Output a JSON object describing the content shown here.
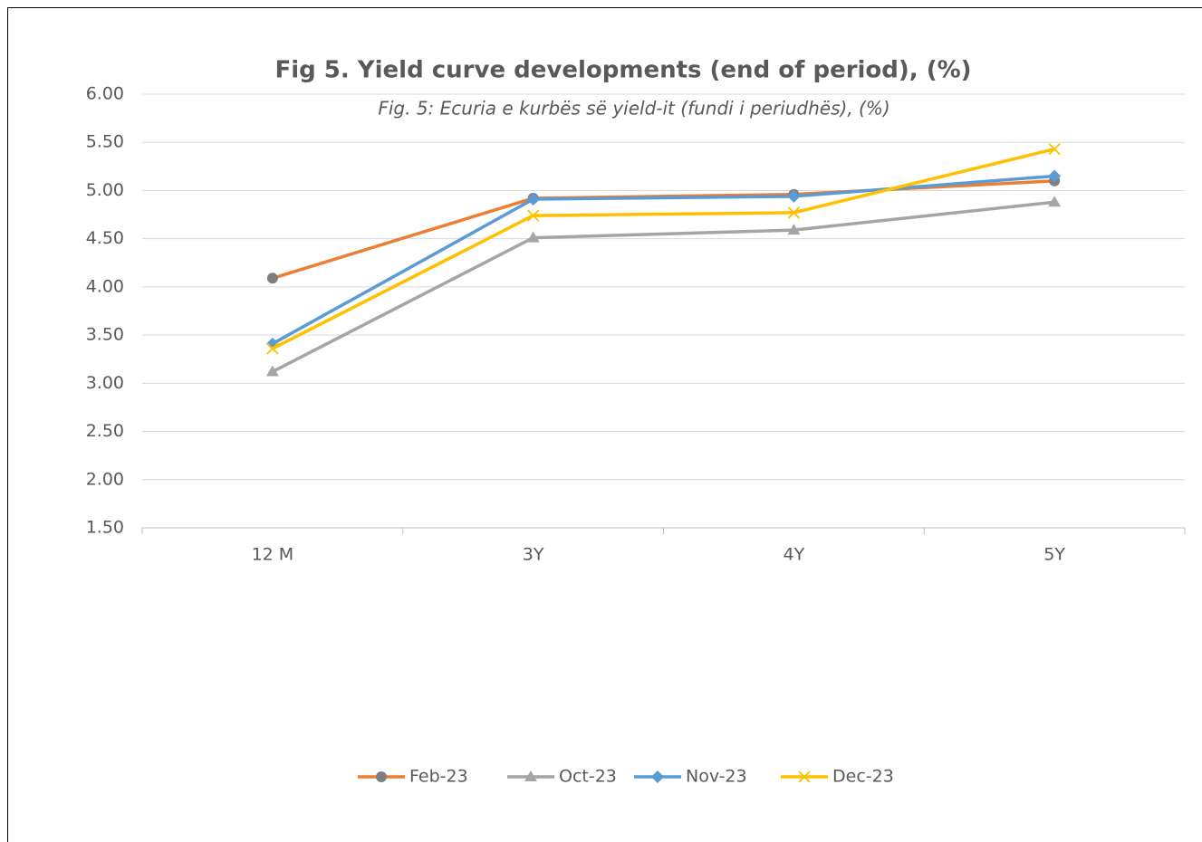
{
  "chart_data": {
    "type": "line",
    "title": "Fig 5. Yield curve developments (end of period), (%)",
    "subtitle": "Fig. 5: Ecuria e kurbës së yield-it (fundi i periudhës), (%)",
    "categories": [
      "12 M",
      "3Y",
      "4Y",
      "5Y"
    ],
    "series": [
      {
        "name": "Feb-23",
        "color": "#ed7d31",
        "marker": "circle",
        "marker_color": "#7f7f7f",
        "values": [
          4.09,
          4.92,
          4.96,
          5.1
        ]
      },
      {
        "name": "Oct-23",
        "color": "#a5a5a5",
        "marker": "triangle",
        "marker_color": "#a5a5a5",
        "values": [
          3.12,
          4.51,
          4.59,
          4.88
        ]
      },
      {
        "name": "Nov-23",
        "color": "#5b9bd5",
        "marker": "diamond",
        "marker_color": "#5b9bd5",
        "values": [
          3.41,
          4.91,
          4.94,
          5.15
        ]
      },
      {
        "name": "Dec-23",
        "color": "#ffc000",
        "marker": "x",
        "marker_color": "#ffc000",
        "values": [
          3.36,
          4.74,
          4.77,
          5.43
        ]
      }
    ],
    "ylim": [
      1.5,
      6.0
    ],
    "yticks": [
      {
        "value": 1.5,
        "label": "1.50"
      },
      {
        "value": 2.0,
        "label": "2.00"
      },
      {
        "value": 2.5,
        "label": "2.50"
      },
      {
        "value": 3.0,
        "label": "3.00"
      },
      {
        "value": 3.5,
        "label": "3.50"
      },
      {
        "value": 4.0,
        "label": "4.00"
      },
      {
        "value": 4.5,
        "label": "4.50"
      },
      {
        "value": 5.0,
        "label": "5.00"
      },
      {
        "value": 5.5,
        "label": "5.50"
      },
      {
        "value": 6.0,
        "label": "6.00"
      }
    ],
    "grid": true,
    "legend": "bottom"
  }
}
